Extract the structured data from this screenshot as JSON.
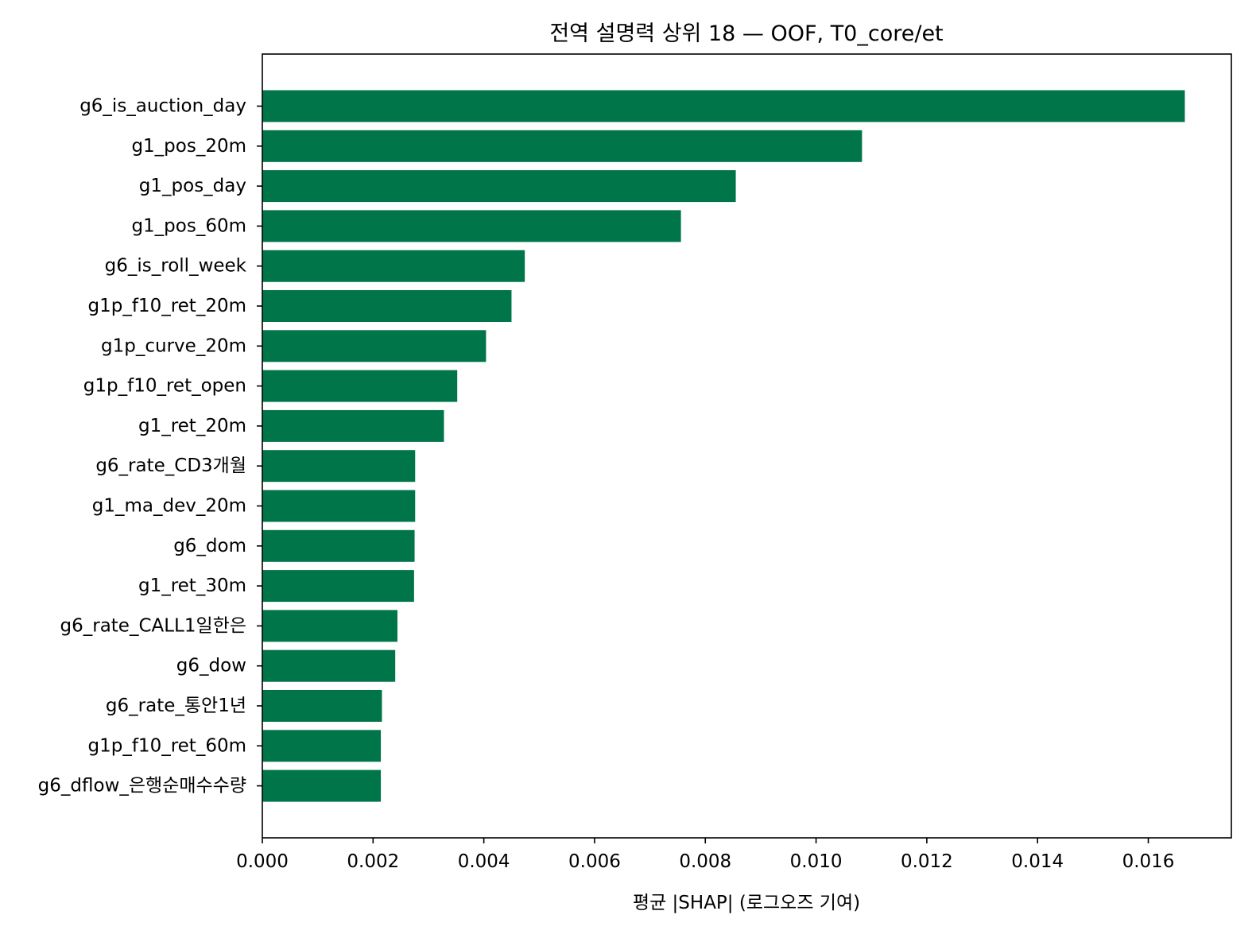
{
  "chart_data": {
    "type": "bar",
    "orientation": "horizontal",
    "title": "전역 설명력 상위 18 — OOF, T0_core/et",
    "xlabel": "평균 |SHAP| (로그오즈 기여)",
    "ylabel": "",
    "xlim": [
      0,
      0.0175
    ],
    "x_ticks": [
      "0.000",
      "0.002",
      "0.004",
      "0.006",
      "0.008",
      "0.010",
      "0.012",
      "0.014",
      "0.016"
    ],
    "categories": [
      "g6_is_auction_day",
      "g1_pos_20m",
      "g1_pos_day",
      "g1_pos_60m",
      "g6_is_roll_week",
      "g1p_f10_ret_20m",
      "g1p_curve_20m",
      "g1p_f10_ret_open",
      "g1_ret_20m",
      "g6_rate_CD3개월",
      "g1_ma_dev_20m",
      "g6_dom",
      "g1_ret_30m",
      "g6_rate_CALL1일한은",
      "g6_dow",
      "g6_rate_통안1년",
      "g1p_f10_ret_60m",
      "g6_dflow_은행순매수수량"
    ],
    "values": [
      0.01666,
      0.01083,
      0.00855,
      0.00756,
      0.00474,
      0.0045,
      0.00404,
      0.00352,
      0.00328,
      0.00276,
      0.00276,
      0.00275,
      0.00274,
      0.00244,
      0.0024,
      0.00216,
      0.00214,
      0.00214
    ],
    "bar_color": "#00754a",
    "grid": false
  }
}
